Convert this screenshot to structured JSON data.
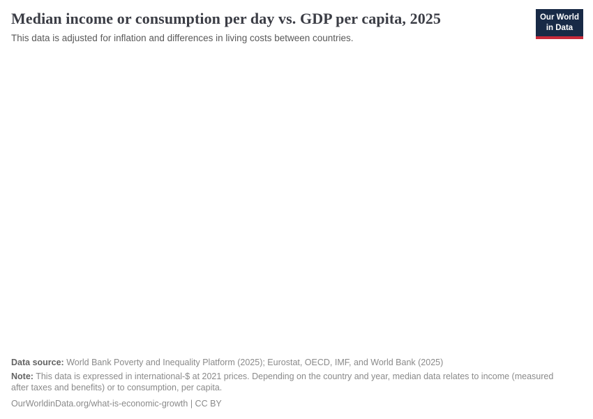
{
  "page": {
    "title": "Median income or consumption per day vs. GDP per capita, 2025",
    "subtitle": "This data is adjusted for inflation and differences in living costs between countries."
  },
  "logo": {
    "line1": "Our World",
    "line2": "in Data",
    "bg_color": "#182a46",
    "accent_color": "#c82a3a"
  },
  "footer": {
    "data_source_label": "Data source:",
    "data_source_text": " World Bank Poverty and Inequality Platform (2025); Eurostat, OECD, IMF, and World Bank (2025)",
    "note_label": "Note:",
    "note_text": " This data is expressed in international-$ at 2021 prices. Depending on the country and year, median data relates to income (measured after taxes and benefits) or to consumption, per capita.",
    "url": "OurWorldinData.org/what-is-economic-growth",
    "separator": " | ",
    "license": "CC BY"
  },
  "chart_data": {
    "type": "scatter",
    "title": "Median income or consumption per day vs. GDP per capita, 2025",
    "subtitle": "This data is adjusted for inflation and differences in living costs between countries.",
    "xlabel": "",
    "ylabel": "",
    "series": [],
    "legend_position": "none",
    "grid": false
  },
  "colors": {
    "background": "#ffffff",
    "title_text": "#3b3d45",
    "subtitle_text": "#595959",
    "footer_text": "#8a8a8a",
    "footer_label_text": "#636363",
    "logo_navy": "#182a46",
    "logo_red": "#c82a3a"
  }
}
